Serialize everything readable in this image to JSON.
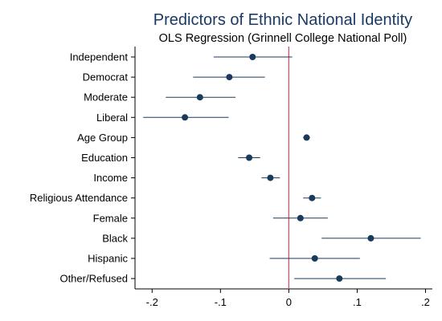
{
  "chart_data": {
    "type": "scatter",
    "title": "Predictors of Ethnic National Identity",
    "subtitle": "OLS Regression (Grinnell College National Poll)",
    "xlabel": "",
    "ylabel": "",
    "xlim": [
      -0.225,
      0.21
    ],
    "x_ticks": [
      -0.2,
      -0.1,
      0,
      0.1,
      0.2
    ],
    "x_tick_labels": [
      "-.2",
      "-.1",
      "0",
      ".1",
      ".2"
    ],
    "reference_line": {
      "x": 0,
      "color": "#c8566e"
    },
    "grid": false,
    "marker_color": "#1a3a5c",
    "categories": [
      "Independent",
      "Democrat",
      "Moderate",
      "Liberal",
      "Age Group",
      "Education",
      "Income",
      "Religious Attendance",
      "Female",
      "Black",
      "Hispanic",
      "Other/Refused"
    ],
    "estimates": [
      -0.053,
      -0.087,
      -0.13,
      -0.152,
      0.026,
      -0.058,
      -0.027,
      0.034,
      0.017,
      0.12,
      0.038,
      0.074
    ],
    "ci_low": [
      -0.11,
      -0.14,
      -0.18,
      -0.213,
      0.021,
      -0.074,
      -0.04,
      0.021,
      -0.023,
      0.048,
      -0.028,
      0.008
    ],
    "ci_high": [
      0.005,
      -0.035,
      -0.078,
      -0.088,
      0.031,
      -0.042,
      -0.013,
      0.047,
      0.057,
      0.193,
      0.104,
      0.142
    ]
  }
}
